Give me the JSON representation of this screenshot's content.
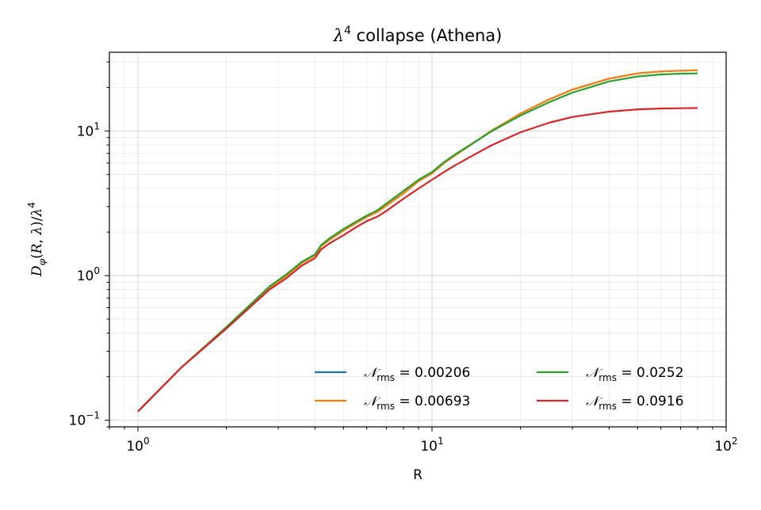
{
  "chart_data": {
    "type": "line",
    "title": {
      "lambda": "λ",
      "exp": "4",
      "rest": " collapse (Athena)"
    },
    "xlabel": "R",
    "ylabel": "D_φ(R, λ)/λ^4",
    "xscale": "log",
    "yscale": "log",
    "xlim": [
      0.8,
      100
    ],
    "ylim": [
      0.09,
      35
    ],
    "grid": true,
    "legend": {
      "placement": "lower-right",
      "columns": 2
    },
    "x_ticks": [
      {
        "base": "10",
        "exp": "0",
        "value": 1
      },
      {
        "base": "10",
        "exp": "1",
        "value": 10
      },
      {
        "base": "10",
        "exp": "2",
        "value": 100
      }
    ],
    "y_ticks": [
      {
        "base": "10",
        "exp": "−1",
        "value": 0.1
      },
      {
        "base": "10",
        "exp": "0",
        "value": 1
      },
      {
        "base": "10",
        "exp": "1",
        "value": 10
      }
    ],
    "x": [
      1,
      1.4,
      2,
      2.8,
      3.2,
      3.6,
      4,
      4.2,
      4.5,
      5,
      5.5,
      6,
      6.5,
      7,
      8,
      9,
      10,
      11,
      12,
      14,
      16,
      18,
      20,
      25,
      30,
      40,
      50,
      60,
      70,
      80
    ],
    "series": [
      {
        "name_symbol": "𝒩",
        "name_sub": "rms",
        "name_value": " = 0.00206",
        "color": "#1f77b4",
        "values": [
          0.115,
          0.23,
          0.44,
          0.83,
          1.0,
          1.22,
          1.38,
          1.6,
          1.78,
          2.05,
          2.3,
          2.55,
          2.75,
          3.05,
          3.7,
          4.5,
          5.1,
          6.0,
          6.8,
          8.4,
          10.1,
          11.6,
          13.2,
          16.5,
          19.3,
          23.0,
          25.0,
          25.8,
          26.1,
          26.3
        ]
      },
      {
        "name_symbol": "𝒩",
        "name_sub": "rms",
        "name_value": " = 0.00693",
        "color": "#ff7f0e",
        "values": [
          0.115,
          0.23,
          0.44,
          0.83,
          1.0,
          1.22,
          1.38,
          1.6,
          1.78,
          2.05,
          2.3,
          2.55,
          2.75,
          3.05,
          3.7,
          4.5,
          5.1,
          6.0,
          6.8,
          8.4,
          10.1,
          11.6,
          13.2,
          16.5,
          19.3,
          23.0,
          25.0,
          25.8,
          26.1,
          26.3
        ]
      },
      {
        "name_symbol": "𝒩",
        "name_sub": "rms",
        "name_value": " = 0.0252",
        "color": "#2ca02c",
        "values": [
          0.115,
          0.23,
          0.44,
          0.84,
          1.02,
          1.24,
          1.4,
          1.63,
          1.82,
          2.1,
          2.35,
          2.6,
          2.82,
          3.15,
          3.85,
          4.6,
          5.2,
          6.1,
          6.9,
          8.4,
          10.0,
          11.4,
          12.8,
          15.8,
          18.4,
          22.0,
          23.8,
          24.6,
          24.9,
          25.0
        ]
      },
      {
        "name_symbol": "𝒩",
        "name_sub": "rms",
        "name_value": " = 0.0916",
        "color": "#d62728",
        "values": [
          0.115,
          0.23,
          0.43,
          0.8,
          0.96,
          1.17,
          1.32,
          1.52,
          1.68,
          1.9,
          2.15,
          2.38,
          2.55,
          2.8,
          3.4,
          4.0,
          4.6,
          5.2,
          5.8,
          6.9,
          8.0,
          8.9,
          9.8,
          11.4,
          12.5,
          13.6,
          14.1,
          14.3,
          14.35,
          14.4
        ]
      }
    ]
  }
}
